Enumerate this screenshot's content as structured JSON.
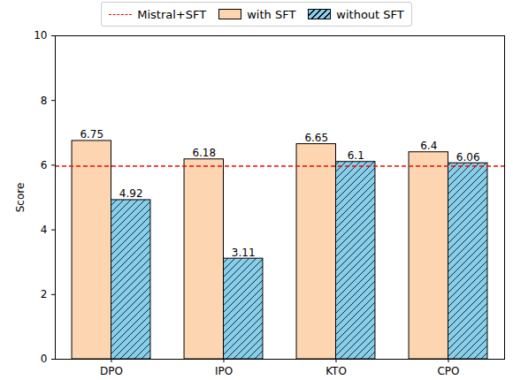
{
  "chart_data": {
    "type": "bar",
    "y_label": "Score",
    "categories": [
      "DPO",
      "IPO",
      "KTO",
      "CPO"
    ],
    "series": [
      {
        "name": "with SFT",
        "color": "#fdd5b1",
        "values": [
          6.75,
          6.18,
          6.65,
          6.4
        ]
      },
      {
        "name": "without SFT",
        "color": "#87ceeb",
        "values": [
          4.92,
          3.11,
          6.1,
          6.06
        ]
      }
    ],
    "reference_line": {
      "name": "Mistral+SFT",
      "value": 5.97,
      "color": "#ff0000",
      "line_style": "dashed"
    },
    "ylim": [
      0,
      10
    ],
    "yticks": [
      0,
      2,
      4,
      6,
      8,
      10
    ],
    "data_labels": true,
    "legend": "top"
  }
}
